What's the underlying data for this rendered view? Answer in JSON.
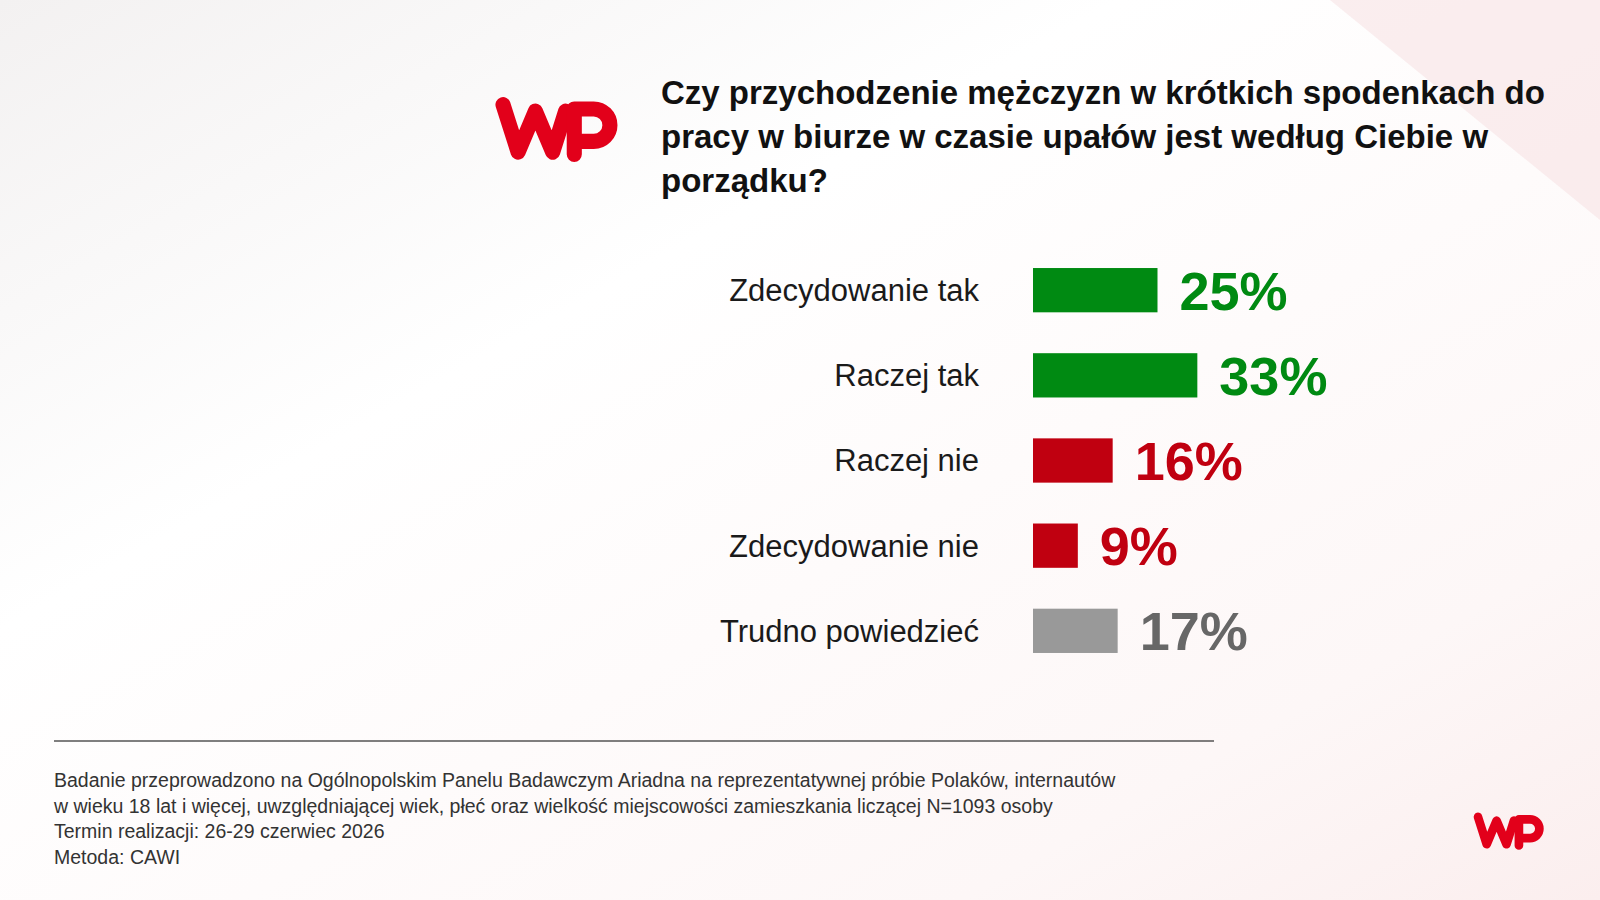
{
  "chart_data": {
    "type": "bar",
    "orientation": "horizontal",
    "title": "Czy przychodzenie mężczyzn w krótkich spodenkach do pracy w biurze w czasie upałów jest według Ciebie w porządku?",
    "categories": [
      "Zdecydowanie tak",
      "Raczej tak",
      "Raczej nie",
      "Zdecydowanie nie",
      "Trudno powiedzieć"
    ],
    "values": [
      25,
      33,
      16,
      9,
      17
    ],
    "value_labels": [
      "25%",
      "33%",
      "16%",
      "9%",
      "17%"
    ],
    "colors": [
      "#008a12",
      "#008a12",
      "#c00010",
      "#c00010",
      "#999999"
    ],
    "data_labels": true,
    "tick_labels": false,
    "footnote": [
      "Badanie przeprowadzono na Ogólnopolskim Panelu Badawczym Ariadna na reprezentatywnej próbie Polaków, internautów",
      "w wieku 18 lat i więcej, uwzględniającej wiek, płeć oraz wielkość miejscowości zamieszkania liczącej N=1093 osoby",
      "Termin realizacji: 26-29 czerwiec 2026",
      "Metoda: CAWI"
    ]
  }
}
